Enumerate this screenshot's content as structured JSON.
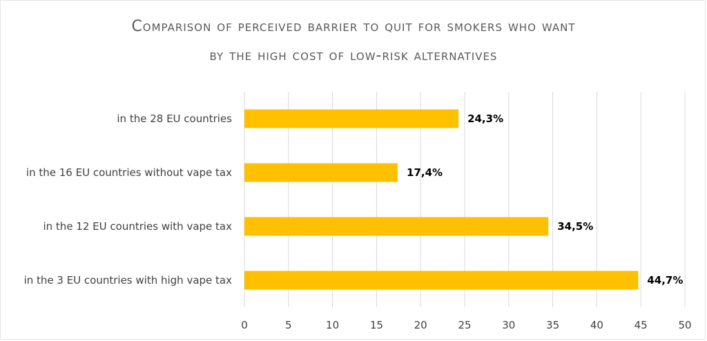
{
  "chart_data": {
    "type": "bar",
    "orientation": "horizontal",
    "title": "Comparison of perceived barrier to quit for smokers who want",
    "subtitle": "by the high cost of low-risk alternatives",
    "categories": [
      "in the 28 EU countries",
      "in the 16 EU countries without vape tax",
      "in the 12 EU countries with vape tax",
      "in the 3 EU countries with high vape tax"
    ],
    "values": [
      24.3,
      17.4,
      34.5,
      44.7
    ],
    "data_labels": [
      "24,3%",
      "17,4%",
      "34,5%",
      "44,7%"
    ],
    "xlim": [
      0,
      50
    ],
    "xticks": [
      0,
      5,
      10,
      15,
      20,
      25,
      30,
      35,
      40,
      45,
      50
    ],
    "grid": "vertical",
    "bar_color": "#FFC000",
    "grid_color": "#D9D9D9"
  }
}
